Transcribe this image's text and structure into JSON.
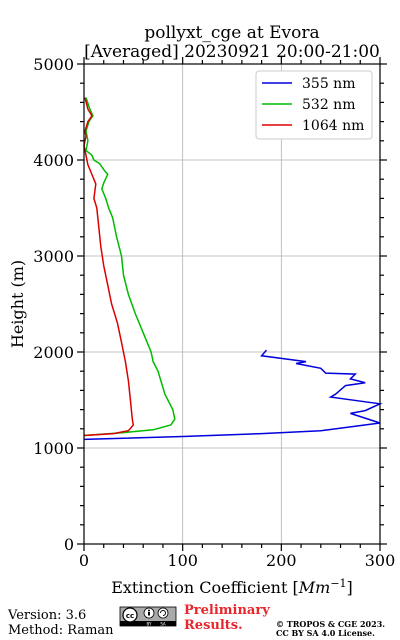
{
  "chart_data": {
    "type": "line",
    "title": "pollyxt_cge at Evora",
    "subtitle": "[Averaged] 20230921 20:00-21:00",
    "xlabel": "Extinction Coefficient [Mm⁻¹]",
    "ylabel": "Height (m)",
    "xlim": [
      0,
      300
    ],
    "ylim": [
      0,
      5000
    ],
    "xticks": [
      0,
      100,
      200,
      300
    ],
    "yticks": [
      0,
      1000,
      2000,
      3000,
      4000,
      5000
    ],
    "xtick_labels": [
      "0",
      "100",
      "200",
      "300"
    ],
    "ytick_labels": [
      "0",
      "1000",
      "2000",
      "3000",
      "4000",
      "5000"
    ],
    "grid": true,
    "legend": "top-right",
    "series": [
      {
        "name": "355 nm",
        "color": "#0000dd",
        "x": [
          0,
          100,
          180,
          240,
          300,
          270,
          285,
          300,
          250,
          255,
          265,
          285,
          270,
          275,
          245,
          240,
          215,
          225,
          180,
          185
        ],
        "y": [
          1090,
          1120,
          1150,
          1180,
          1260,
          1360,
          1390,
          1460,
          1530,
          1560,
          1650,
          1680,
          1720,
          1770,
          1780,
          1830,
          1880,
          1900,
          1960,
          2020
        ]
      },
      {
        "name": "532 nm",
        "color": "#00bb00",
        "x": [
          0,
          40,
          70,
          88,
          92,
          90,
          85,
          82,
          75,
          70,
          68,
          60,
          52,
          45,
          40,
          38,
          33,
          29,
          25,
          22,
          18,
          20,
          24,
          20,
          16,
          10,
          8,
          2,
          4,
          2,
          5,
          9,
          6,
          4,
          2
        ],
        "y": [
          1130,
          1160,
          1190,
          1240,
          1300,
          1400,
          1500,
          1560,
          1800,
          1900,
          2000,
          2200,
          2400,
          2600,
          2800,
          3000,
          3200,
          3400,
          3500,
          3600,
          3700,
          3760,
          3850,
          3900,
          3960,
          4000,
          4050,
          4100,
          4200,
          4300,
          4400,
          4460,
          4530,
          4590,
          4650
        ]
      },
      {
        "name": "1064 nm",
        "color": "#dd0000",
        "x": [
          0,
          30,
          45,
          50,
          49,
          47,
          45,
          42,
          38,
          34,
          28,
          24,
          20,
          17,
          15,
          13,
          10,
          12,
          8,
          4,
          2,
          0,
          2,
          1,
          4,
          8,
          4,
          1
        ],
        "y": [
          1130,
          1150,
          1180,
          1240,
          1300,
          1500,
          1700,
          1900,
          2100,
          2300,
          2500,
          2700,
          2900,
          3100,
          3300,
          3500,
          3600,
          3750,
          3850,
          3950,
          4050,
          4150,
          4250,
          4300,
          4400,
          4460,
          4530,
          4650
        ]
      }
    ]
  },
  "footer": {
    "version": "Version: 3.6",
    "method": "Method: Raman",
    "prelim_line1": "Preliminary",
    "prelim_line2": "Results.",
    "copyright_line1": "© TROPOS & CGE 2023.",
    "copyright_line2": "CC BY SA 4.0 License.",
    "license_badge": [
      "cc",
      "BY",
      "SA"
    ]
  }
}
